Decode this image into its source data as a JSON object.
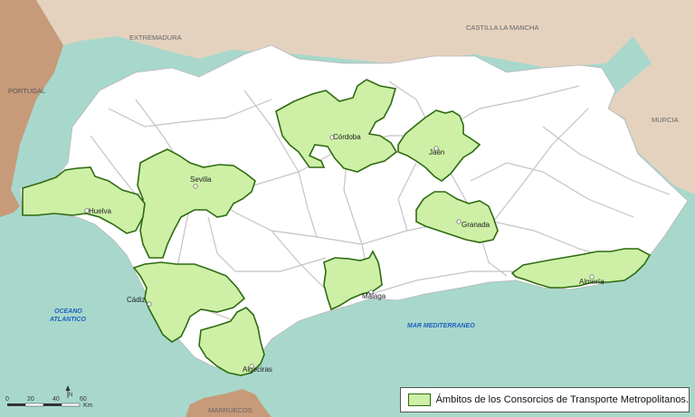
{
  "map": {
    "neighbors": {
      "portugal": "PORTUGAL",
      "extremadura": "EXTREMADURA",
      "castilla": "CASTILLA LA MANCHA",
      "murcia": "MURCIA",
      "marruecos": "MARRUECOS"
    },
    "seas": {
      "atlantic_line1": "OCEANO",
      "atlantic_line2": "ATLANTICO",
      "mediterranean": "MAR MEDITERRANEO"
    },
    "cities": {
      "sevilla": "Sevilla",
      "cordoba": "Córdoba",
      "jaen": "Jaén",
      "huelva": "Huelva",
      "granada": "Granada",
      "cadiz": "Cádiz",
      "malaga": "Málaga",
      "almeria": "Almería",
      "algeciras": "Algeciras"
    },
    "scale": {
      "ticks": [
        "0",
        "20",
        "40",
        "60"
      ],
      "unit": "Km"
    },
    "legend": {
      "label": "Ámbitos de los Consorcios de Transporte Metropolitanos."
    },
    "colors": {
      "sea": "#a8d8cc",
      "land_outside": "#e4d2bf",
      "portugal": "#c79a7a",
      "andalucia": "#ffffff",
      "consortium_fill": "#cdf0a6",
      "consortium_border": "#2e6b11",
      "roads": "#c4c4c4"
    }
  }
}
